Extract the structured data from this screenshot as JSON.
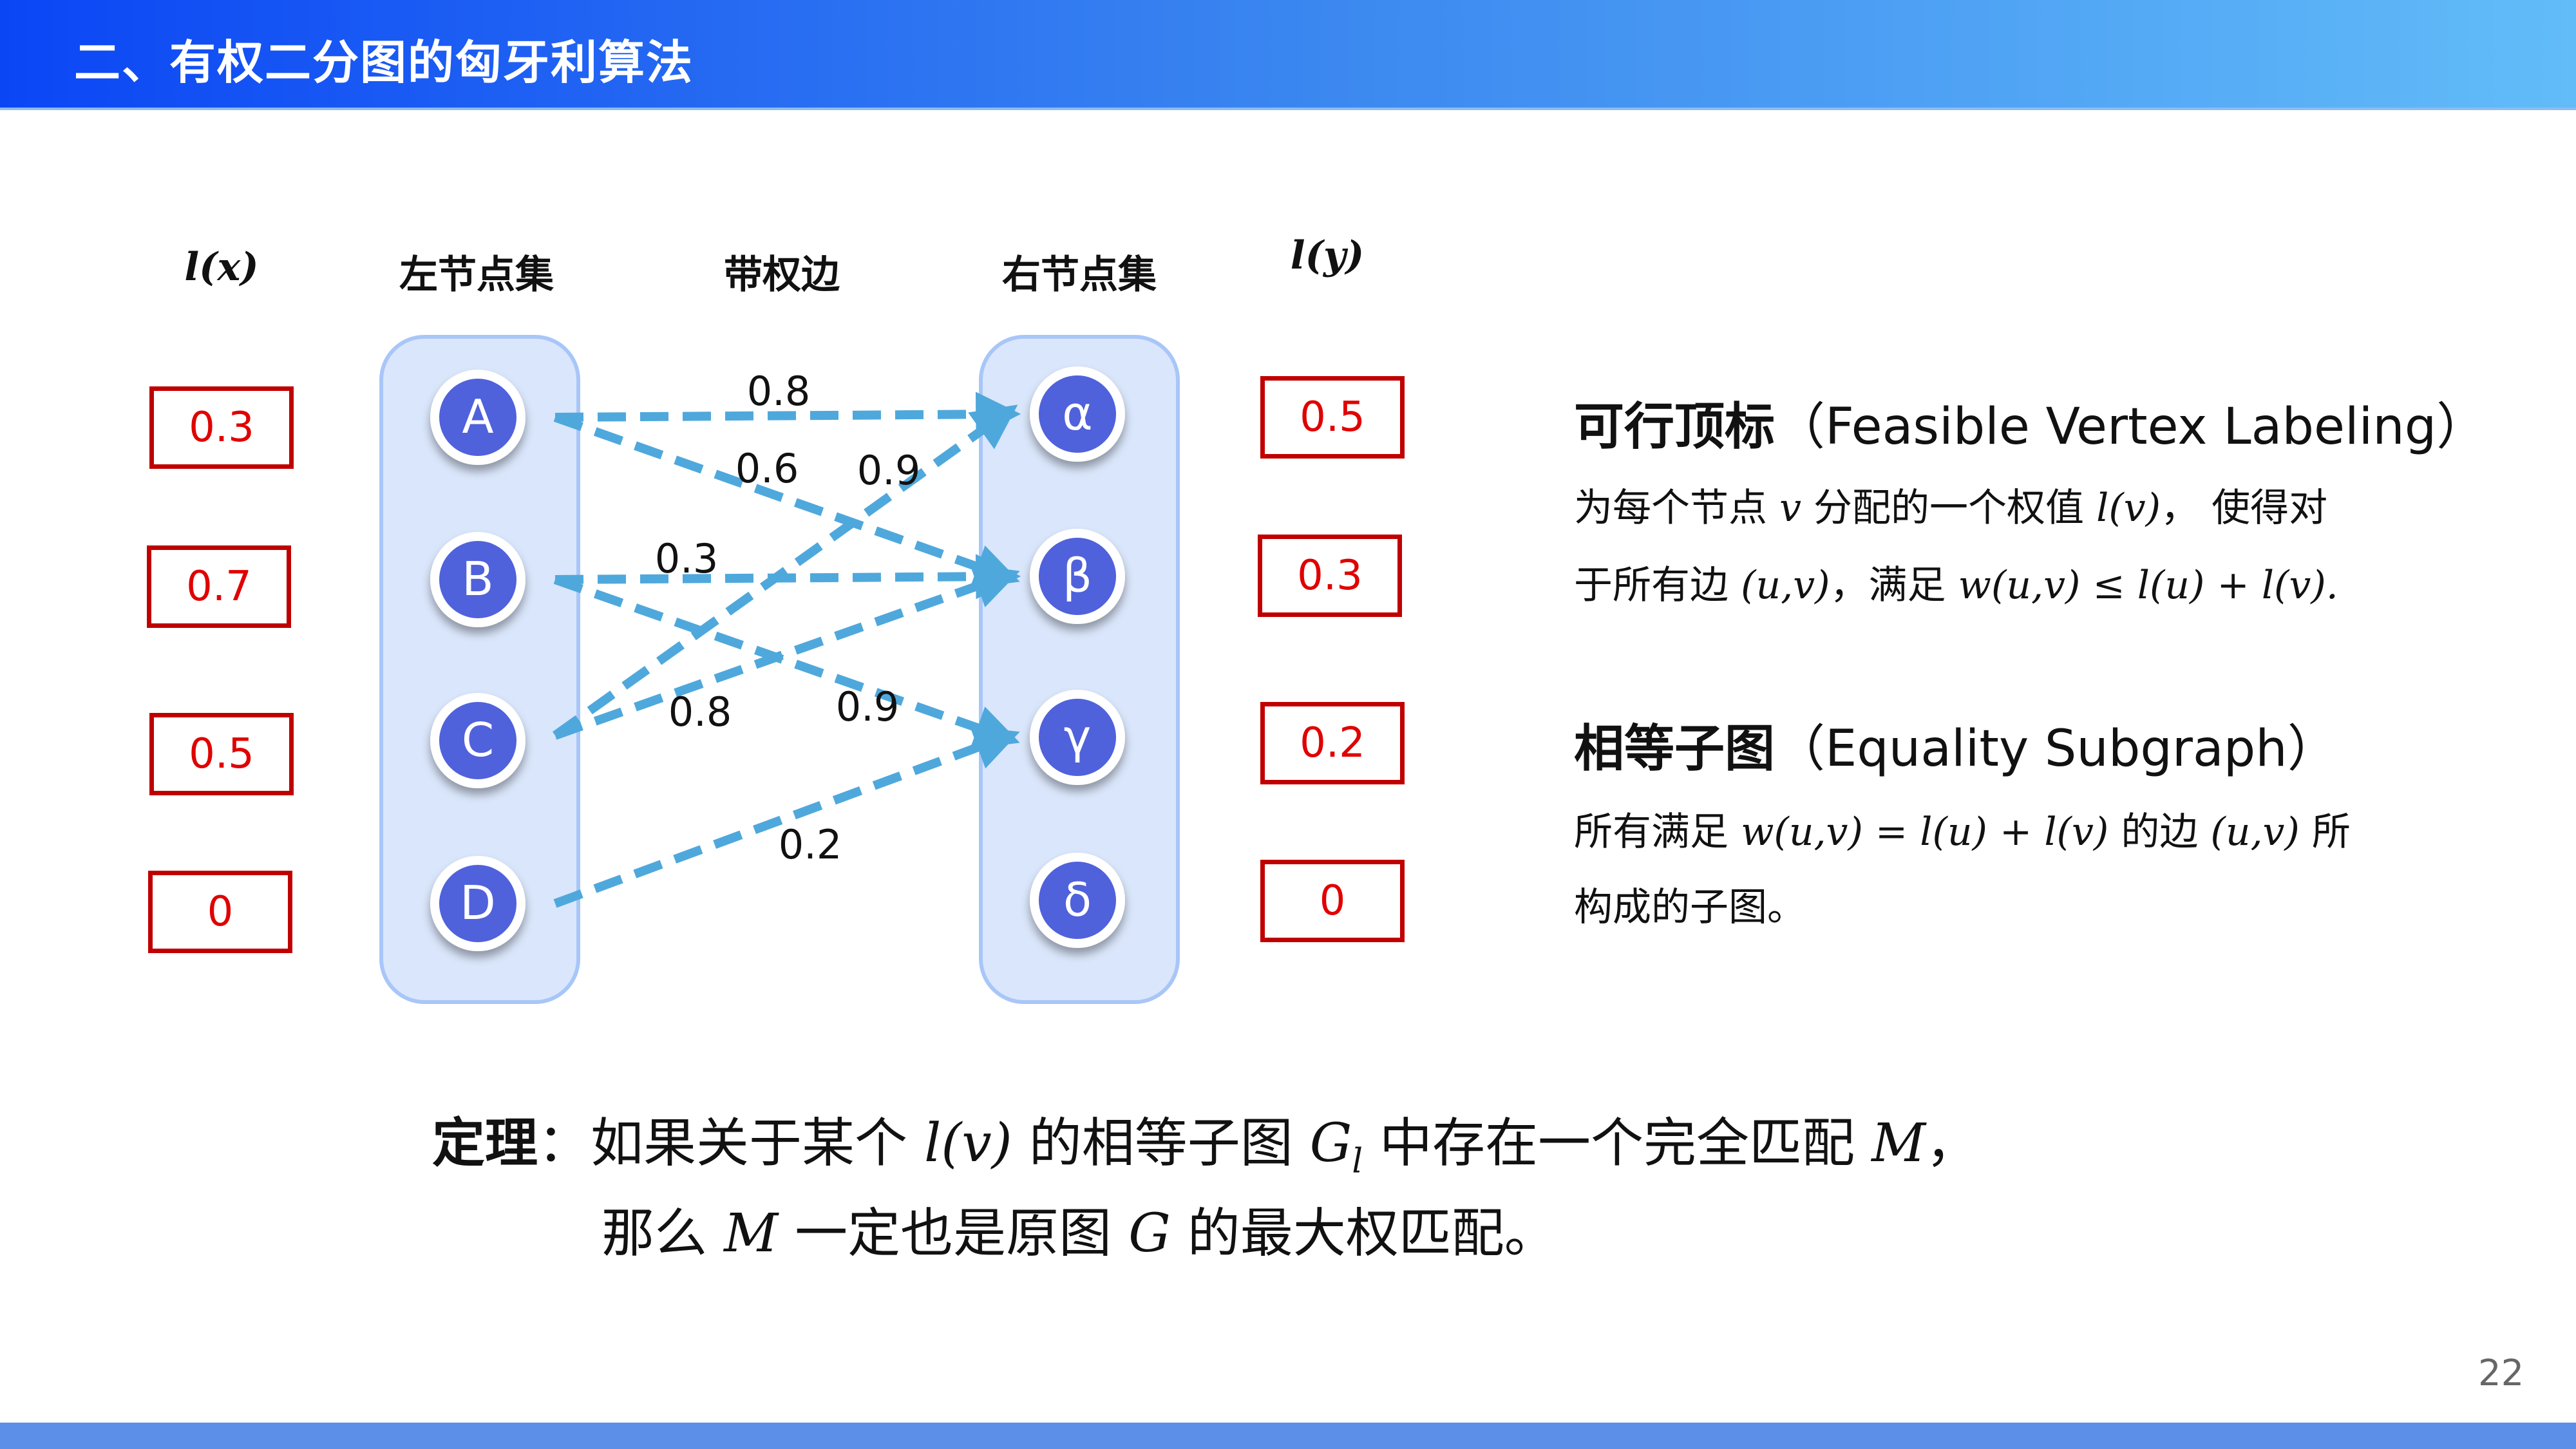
{
  "header": {
    "title": "二、有权二分图的匈牙利算法"
  },
  "page_number": "22",
  "columns": {
    "lx": "l(x)",
    "left": "左节点集",
    "edges": "带权边",
    "right": "右节点集",
    "ly": "l(y)"
  },
  "left_nodes": [
    {
      "label": "A",
      "lx": "0.3"
    },
    {
      "label": "B",
      "lx": "0.7"
    },
    {
      "label": "C",
      "lx": "0.5"
    },
    {
      "label": "D",
      "lx": "0"
    }
  ],
  "right_nodes": [
    {
      "label": "α",
      "ly": "0.5"
    },
    {
      "label": "β",
      "ly": "0.3"
    },
    {
      "label": "γ",
      "ly": "0.2"
    },
    {
      "label": "δ",
      "ly": "0"
    }
  ],
  "edges": [
    {
      "from": "A",
      "to": "α",
      "w": "0.8"
    },
    {
      "from": "A",
      "to": "β",
      "w": "0.6"
    },
    {
      "from": "C",
      "to": "α",
      "w": "0.9"
    },
    {
      "from": "B",
      "to": "β",
      "w": "0.3"
    },
    {
      "from": "C",
      "to": "β",
      "w": "0.8"
    },
    {
      "from": "B",
      "to": "γ",
      "w": "0.9"
    },
    {
      "from": "D",
      "to": "γ",
      "w": "0.2"
    }
  ],
  "colors": {
    "edge": "#4fa8dc",
    "node": "#5061dc",
    "container": "#dae6fb",
    "box_border": "#c00000",
    "header_start": "#0b46f5",
    "header_end": "#62bcf8"
  },
  "feasible": {
    "title": "可行顶标",
    "title_en": "（Feasible Vertex Labeling）",
    "l1a": "为每个节点 ",
    "l1m": "v",
    "l1b": " 分配的一个权值 ",
    "l1m2": "l(v)",
    "l1c": "， 使得对",
    "l2a": "于所有边 ",
    "l2m": "(u,v)",
    "l2b": "，满足 ",
    "l2m2": "w(u,v) ≤ l(u) + l(v)."
  },
  "equality": {
    "title": "相等子图",
    "title_en": "（Equality Subgraph）",
    "l1a": "所有满足 ",
    "l1m": "w(u,v) = l(u) + l(v)",
    "l1b": " 的边 ",
    "l1m2": "(u,v)",
    "l1c": " 所",
    "l2": "构成的子图。"
  },
  "theorem": {
    "label": "定理",
    "colon": "：",
    "a": "如果关于某个 ",
    "m1": "l(v)",
    "b": " 的相等子图 ",
    "m2": "G",
    "m2sub": "l",
    "c": " 中存在一个完全匹配 ",
    "m3": "M",
    "d": "，",
    "e": "那么 ",
    "m4": "M",
    "f": " 一定也是原图 ",
    "m5": "G",
    "g": " 的最大权匹配。"
  }
}
